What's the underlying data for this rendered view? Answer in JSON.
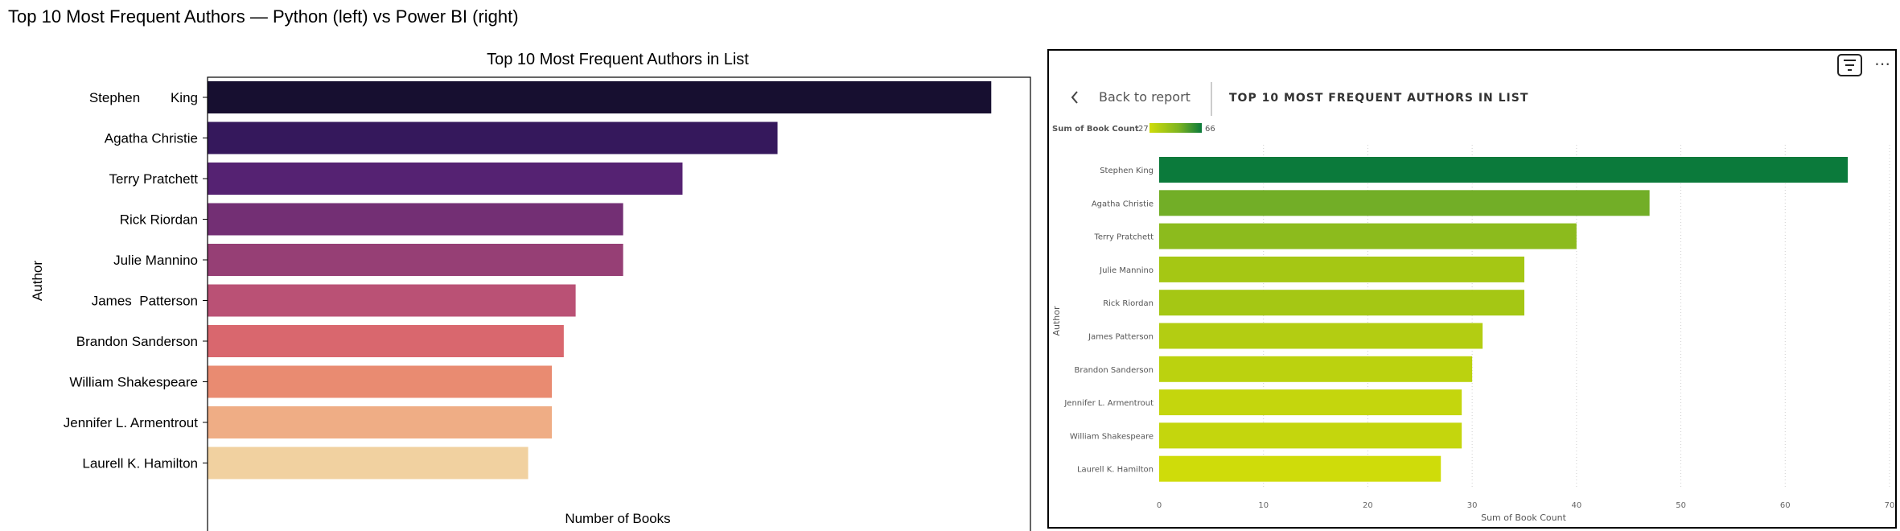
{
  "page_title": "Top 10 Most Frequent Authors — Python (left) vs Power BI (right)",
  "chart_data": [
    {
      "type": "bar",
      "orientation": "horizontal",
      "title": "Top 10 Most Frequent Authors in List",
      "xlabel": "Number of Books",
      "ylabel": "Author",
      "xlim": [
        0,
        69.3
      ],
      "xticks": [
        0,
        10,
        20,
        30,
        40,
        50,
        60
      ],
      "grid": false,
      "categories": [
        "Stephen        King",
        "Agatha Christie",
        "Terry Pratchett",
        "Rick Riordan",
        "Julie Mannino",
        "James  Patterson",
        "Brandon Sanderson",
        "William Shakespeare",
        "Jennifer L. Armentrout",
        "Laurell K. Hamilton"
      ],
      "values": [
        66,
        48,
        40,
        35,
        35,
        31,
        30,
        29,
        29,
        27
      ],
      "colors": [
        "#170f30",
        "#35185c",
        "#552272",
        "#732f74",
        "#963f75",
        "#ba5175",
        "#d9676e",
        "#e98b71",
        "#efad85",
        "#f1d1a0"
      ]
    },
    {
      "type": "bar",
      "orientation": "horizontal",
      "title": "TOP 10 MOST FREQUENT AUTHORS IN LIST",
      "xlabel": "Sum of Book Count",
      "ylabel": "Author",
      "xlim": [
        0,
        70
      ],
      "xticks": [
        0,
        10,
        20,
        30,
        40,
        50,
        60,
        70
      ],
      "grid": "vertical-dotted",
      "categories": [
        "Stephen King",
        "Agatha Christie",
        "Terry Pratchett",
        "Julie Mannino",
        "Rick Riordan",
        "James Patterson",
        "Brandon Sanderson",
        "Jennifer L. Armentrout",
        "William Shakespeare",
        "Laurell K. Hamilton"
      ],
      "values": [
        66,
        47,
        40,
        35,
        35,
        31,
        30,
        29,
        29,
        27
      ],
      "colors": [
        "#0b7a3b",
        "#72ae27",
        "#8cbb1d",
        "#a5c714",
        "#a5c714",
        "#b3cd12",
        "#bbd20f",
        "#c4d60d",
        "#c4d60d",
        "#cfdc0a"
      ],
      "legend": {
        "title": "Sum of Book Count",
        "min": "27",
        "max": "66",
        "position": "top-left"
      }
    }
  ],
  "powerbi_header": {
    "back_label": "Back to report",
    "icons": [
      "chevron-left-icon",
      "filter-icon",
      "more-options-icon"
    ],
    "more_glyph": "⋯"
  }
}
